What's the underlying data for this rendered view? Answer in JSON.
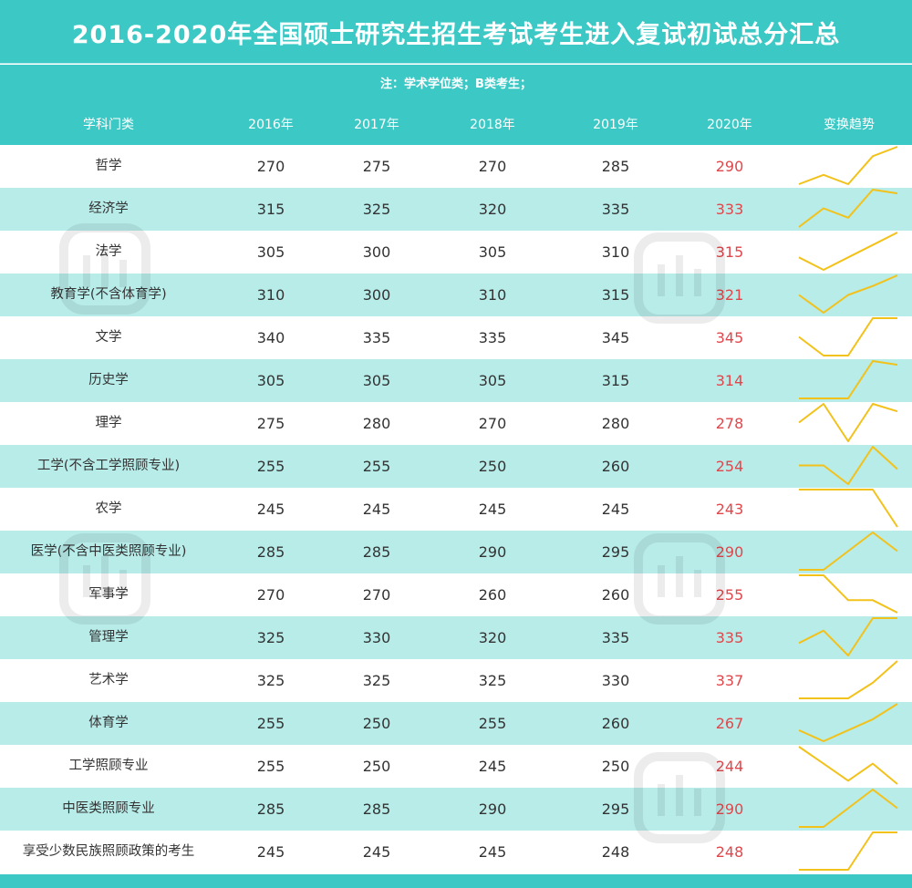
{
  "title": "2016-2020年全国硕士研究生招生考试考生进入复试初试总分汇总",
  "note": "注：学术学位类；B类考生；",
  "headers": {
    "subject": "学科门类",
    "y2016": "2016年",
    "y2017": "2017年",
    "y2018": "2018年",
    "y2019": "2019年",
    "y2020": "2020年",
    "trend": "变换趋势"
  },
  "rows": [
    {
      "name": "哲学",
      "values": [
        270,
        275,
        270,
        285,
        290
      ]
    },
    {
      "name": "经济学",
      "values": [
        315,
        325,
        320,
        335,
        333
      ]
    },
    {
      "name": "法学",
      "values": [
        305,
        300,
        305,
        310,
        315
      ]
    },
    {
      "name": "教育学(不含体育学)",
      "values": [
        310,
        300,
        310,
        315,
        321
      ]
    },
    {
      "name": "文学",
      "values": [
        340,
        335,
        335,
        345,
        345
      ]
    },
    {
      "name": "历史学",
      "values": [
        305,
        305,
        305,
        315,
        314
      ]
    },
    {
      "name": "理学",
      "values": [
        275,
        280,
        270,
        280,
        278
      ]
    },
    {
      "name": "工学(不含工学照顾专业)",
      "values": [
        255,
        255,
        250,
        260,
        254
      ]
    },
    {
      "name": "农学",
      "values": [
        245,
        245,
        245,
        245,
        243
      ]
    },
    {
      "name": "医学(不含中医类照顾专业)",
      "values": [
        285,
        285,
        290,
        295,
        290
      ]
    },
    {
      "name": "军事学",
      "values": [
        270,
        270,
        260,
        260,
        255
      ]
    },
    {
      "name": "管理学",
      "values": [
        325,
        330,
        320,
        335,
        335
      ]
    },
    {
      "name": "艺术学",
      "values": [
        325,
        325,
        325,
        330,
        337
      ]
    },
    {
      "name": "体育学",
      "values": [
        255,
        250,
        255,
        260,
        267
      ]
    },
    {
      "name": "工学照顾专业",
      "values": [
        255,
        250,
        245,
        250,
        244
      ]
    },
    {
      "name": "中医类照顾专业",
      "values": [
        285,
        285,
        290,
        295,
        290
      ]
    },
    {
      "name": "享受少数民族照顾政策的考生",
      "values": [
        245,
        245,
        245,
        248,
        248
      ]
    }
  ],
  "colors": {
    "header_bg": "#3cc9c6",
    "row_alt": "#b7ece9",
    "value_2020": "#e0474c",
    "sparkline": "#f2c21b"
  },
  "watermark_icon": "qingta-logo-icon"
}
